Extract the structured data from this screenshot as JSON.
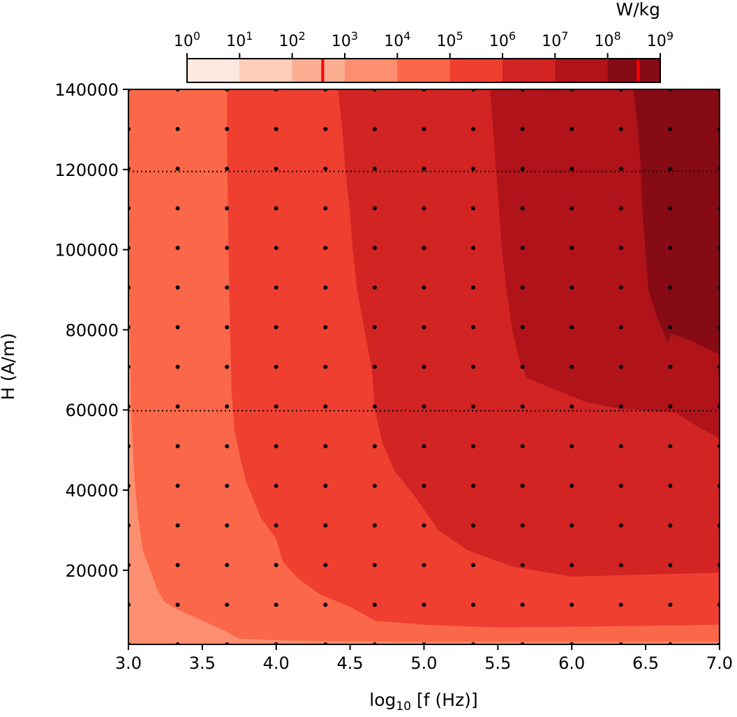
{
  "chart_data": {
    "type": "filled-contour",
    "xlabel": {
      "base": "log",
      "sub": "10",
      "rest": " [f (Hz)]"
    },
    "ylabel": "H (A/m)",
    "xlim": [
      3.0,
      7.0
    ],
    "ylim": [
      1500,
      140000
    ],
    "xticks": [
      {
        "v": 3.0,
        "label": "3.0"
      },
      {
        "v": 3.5,
        "label": "3.5"
      },
      {
        "v": 4.0,
        "label": "4.0"
      },
      {
        "v": 4.5,
        "label": "4.5"
      },
      {
        "v": 5.0,
        "label": "5.0"
      },
      {
        "v": 5.5,
        "label": "5.5"
      },
      {
        "v": 6.0,
        "label": "6.0"
      },
      {
        "v": 6.5,
        "label": "6.5"
      },
      {
        "v": 7.0,
        "label": "7.0"
      }
    ],
    "yticks": [
      {
        "v": 20000,
        "label": "20000"
      },
      {
        "v": 40000,
        "label": "40000"
      },
      {
        "v": 60000,
        "label": "60000"
      },
      {
        "v": 80000,
        "label": "80000"
      },
      {
        "v": 100000,
        "label": "100000"
      },
      {
        "v": 120000,
        "label": "120000"
      },
      {
        "v": 140000,
        "label": "140000"
      }
    ],
    "colorbar": {
      "label": "W/kg",
      "exponent_min": 0,
      "exponent_max": 9,
      "tick_base": "10",
      "ticks": [
        {
          "v": 0,
          "exp": "0"
        },
        {
          "v": 1,
          "exp": "1"
        },
        {
          "v": 2,
          "exp": "2"
        },
        {
          "v": 3,
          "exp": "3"
        },
        {
          "v": 4,
          "exp": "4"
        },
        {
          "v": 5,
          "exp": "5"
        },
        {
          "v": 6,
          "exp": "6"
        },
        {
          "v": 7,
          "exp": "7"
        },
        {
          "v": 8,
          "exp": "8"
        },
        {
          "v": 9,
          "exp": "9"
        }
      ],
      "bands": [
        {
          "from": 0,
          "to": 1,
          "color": "#fee9e0"
        },
        {
          "from": 1,
          "to": 2,
          "color": "#fdcdb9"
        },
        {
          "from": 2,
          "to": 3,
          "color": "#fcae93"
        },
        {
          "from": 3,
          "to": 4,
          "color": "#fc8f6f"
        },
        {
          "from": 4,
          "to": 5,
          "color": "#fa6749"
        },
        {
          "from": 5,
          "to": 6,
          "color": "#ef3f31"
        },
        {
          "from": 6,
          "to": 7,
          "color": "#d22422"
        },
        {
          "from": 7,
          "to": 8,
          "color": "#b0141a"
        },
        {
          "from": 8,
          "to": 9,
          "color": "#860b15"
        }
      ],
      "markers": [
        {
          "v": 2.58,
          "color": "#ff0000"
        },
        {
          "v": 8.58,
          "color": "#ff0000"
        }
      ]
    },
    "contour_levels": [
      {
        "level_exp": 4,
        "color": "#fa6749",
        "boundary": [
          [
            3.0,
            140000
          ],
          [
            3.0,
            98000
          ],
          [
            3.01,
            85000
          ],
          [
            3.02,
            60000
          ],
          [
            3.04,
            45000
          ],
          [
            3.05,
            40000
          ],
          [
            3.07,
            33000
          ],
          [
            3.1,
            25000
          ],
          [
            3.15,
            20000
          ],
          [
            3.2,
            15000
          ],
          [
            3.25,
            12000
          ],
          [
            3.35,
            10000
          ],
          [
            3.5,
            7500
          ],
          [
            3.65,
            5000
          ],
          [
            3.75,
            3000
          ],
          [
            4.1,
            2500
          ],
          [
            5.0,
            2200
          ],
          [
            6.0,
            2200
          ],
          [
            7.0,
            2200
          ]
        ]
      },
      {
        "level_exp": 5,
        "color": "#ef3f31",
        "boundary": [
          [
            3.67,
            140000
          ],
          [
            3.67,
            125000
          ],
          [
            3.68,
            100000
          ],
          [
            3.69,
            80000
          ],
          [
            3.7,
            65000
          ],
          [
            3.72,
            55000
          ],
          [
            3.76,
            48000
          ],
          [
            3.8,
            42000
          ],
          [
            3.9,
            33000
          ],
          [
            4.0,
            28000
          ],
          [
            4.05,
            22000
          ],
          [
            4.15,
            18000
          ],
          [
            4.3,
            14000
          ],
          [
            4.5,
            11000
          ],
          [
            4.67,
            7500
          ],
          [
            5.0,
            6500
          ],
          [
            5.5,
            5800
          ],
          [
            6.0,
            6000
          ],
          [
            6.5,
            6200
          ],
          [
            7.0,
            6500
          ]
        ]
      },
      {
        "level_exp": 6,
        "color": "#d22422",
        "boundary": [
          [
            4.42,
            140000
          ],
          [
            4.45,
            130000
          ],
          [
            4.47,
            120000
          ],
          [
            4.5,
            110000
          ],
          [
            4.52,
            100000
          ],
          [
            4.55,
            90000
          ],
          [
            4.6,
            80000
          ],
          [
            4.65,
            70000
          ],
          [
            4.67,
            60000
          ],
          [
            4.72,
            52000
          ],
          [
            4.8,
            45000
          ],
          [
            4.95,
            38000
          ],
          [
            5.1,
            30000
          ],
          [
            5.3,
            25000
          ],
          [
            5.6,
            21000
          ],
          [
            6.0,
            18500
          ],
          [
            6.5,
            19000
          ],
          [
            7.0,
            19500
          ]
        ]
      },
      {
        "level_exp": 7,
        "color": "#b0141a",
        "boundary": [
          [
            5.45,
            140000
          ],
          [
            5.47,
            130000
          ],
          [
            5.5,
            115000
          ],
          [
            5.53,
            100000
          ],
          [
            5.56,
            90000
          ],
          [
            5.6,
            80000
          ],
          [
            5.65,
            72000
          ],
          [
            5.7,
            68000
          ],
          [
            5.9,
            65000
          ],
          [
            6.1,
            62000
          ],
          [
            6.3,
            60500
          ],
          [
            6.5,
            60000
          ],
          [
            6.7,
            59500
          ],
          [
            6.85,
            56000
          ],
          [
            7.0,
            53000
          ]
        ]
      },
      {
        "level_exp": 8,
        "color": "#860b15",
        "boundary": [
          [
            6.42,
            140000
          ],
          [
            6.45,
            130000
          ],
          [
            6.47,
            120000
          ],
          [
            6.48,
            110000
          ],
          [
            6.5,
            100000
          ],
          [
            6.52,
            90000
          ],
          [
            6.58,
            83000
          ],
          [
            6.65,
            77000
          ],
          [
            6.67,
            79000
          ],
          [
            6.8,
            77500
          ],
          [
            7.0,
            74000
          ]
        ]
      }
    ],
    "sample_grid": {
      "x_start": 3.0,
      "x_step": 0.3333333,
      "x_count": 13,
      "y_start": 1500,
      "y_step": 9892.857,
      "y_count": 15,
      "marker": "dot"
    },
    "reference_lines": [
      {
        "y": 119500,
        "style": "dotted"
      },
      {
        "y": 59800,
        "style": "dotted"
      }
    ]
  }
}
